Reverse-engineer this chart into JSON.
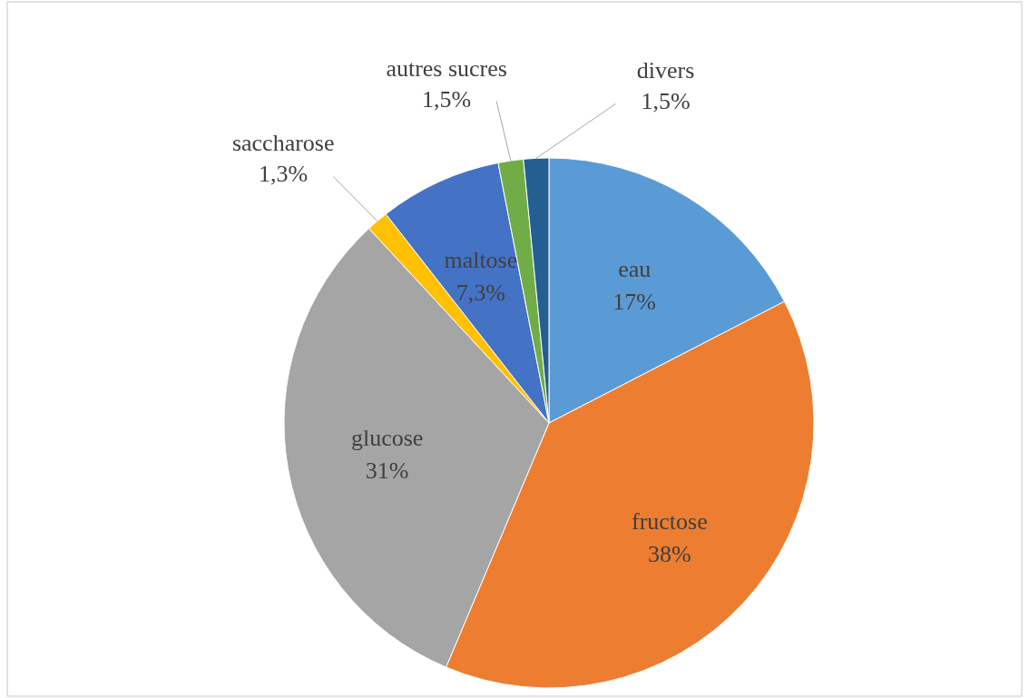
{
  "chart_data": {
    "type": "pie",
    "categories": [
      "eau",
      "fructose",
      "glucose",
      "saccharose",
      "maltose",
      "autres sucres",
      "divers"
    ],
    "values": [
      17,
      38,
      31,
      1.3,
      7.3,
      1.5,
      1.5
    ],
    "value_labels": [
      "17%",
      "38%",
      "31%",
      "1,3%",
      "7,3%",
      "1,5%",
      "1,5%"
    ],
    "colors": [
      "#5b9bd5",
      "#ed7d31",
      "#a5a5a5",
      "#ffc000",
      "#4472c4",
      "#70ad47",
      "#255e91"
    ]
  }
}
